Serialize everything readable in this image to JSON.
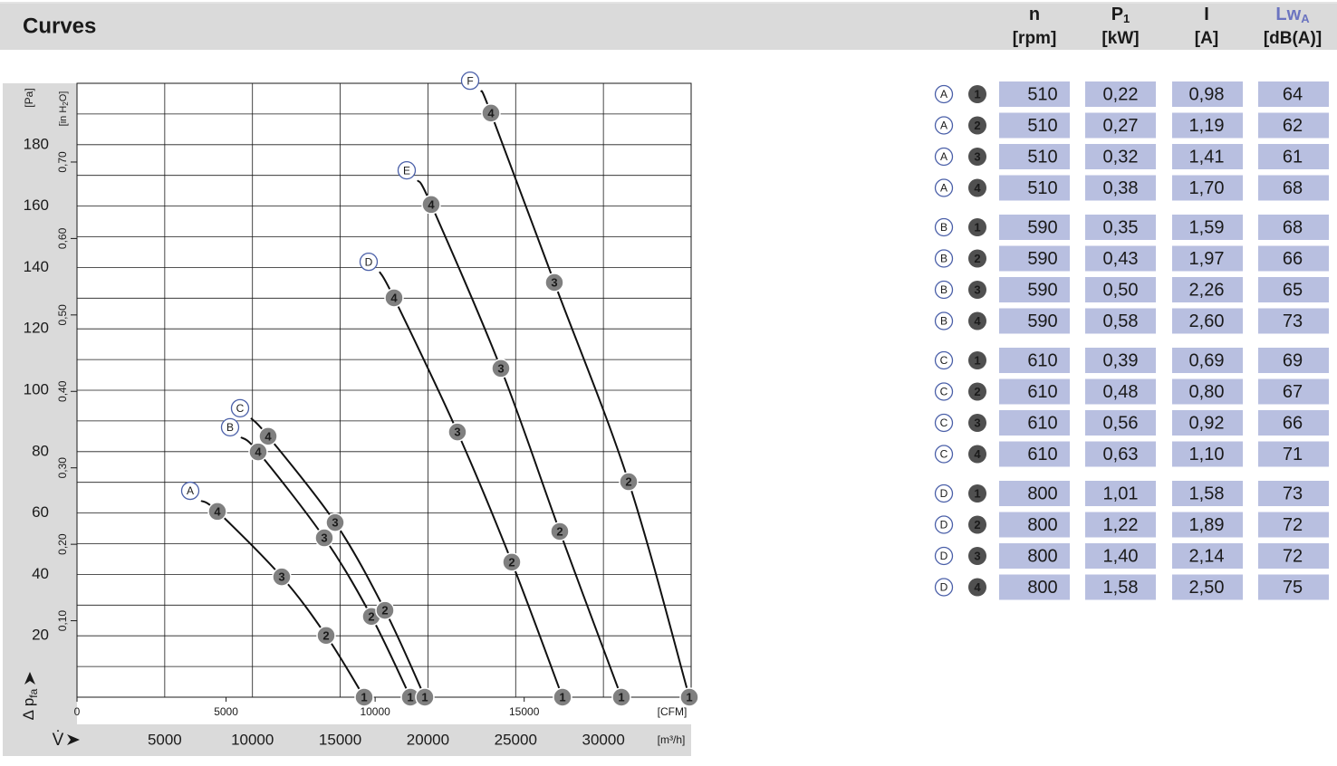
{
  "title": "Curves",
  "chart_data": {
    "type": "fan-curves",
    "xlim": [
      0,
      35000
    ],
    "xticks": [
      5000,
      10000,
      15000,
      20000,
      25000,
      30000
    ],
    "x_unit": "[m³/h]",
    "x_label": "V̇",
    "x2lim": [
      0,
      20600
    ],
    "x2ticks": [
      0,
      5000,
      10000,
      15000
    ],
    "x2_unit": "[CFM]",
    "ylim": [
      0,
      200
    ],
    "yticks": [
      20,
      40,
      60,
      80,
      100,
      120,
      140,
      160,
      180
    ],
    "yminor_ticks": [
      10,
      20,
      30,
      40,
      50,
      60,
      70,
      80,
      90,
      100,
      110,
      120,
      130,
      140,
      150,
      160,
      170,
      180,
      190
    ],
    "y_unit": "[Pa]",
    "y_label": {
      "main": "Δ p",
      "sub": "fa"
    },
    "y2lim": [
      0,
      0.803
    ],
    "y2ticks": [
      {
        "value": 0.1,
        "label": "0,10"
      },
      {
        "value": 0.2,
        "label": "0,20"
      },
      {
        "value": 0.3,
        "label": "0,30"
      },
      {
        "value": 0.4,
        "label": "0,40"
      },
      {
        "value": 0.5,
        "label": "0,50"
      },
      {
        "value": 0.6,
        "label": "0,60"
      },
      {
        "value": 0.7,
        "label": "0,70"
      }
    ],
    "y2_unit": {
      "main": "[in H",
      "sub": "2",
      "end": "O]"
    },
    "grid": true,
    "line_color": "#111111",
    "marker_color": "#808080",
    "label_color": "#4a5fa8",
    "series": [
      {
        "name": "A",
        "x": [
          7072,
          8001,
          11666,
          14196,
          16364
        ],
        "values": [
          64.0,
          60.5,
          39.2,
          20.1,
          0
        ],
        "point_labels": [
          null,
          "4",
          "3",
          "2",
          "1"
        ]
      },
      {
        "name": "B",
        "x": [
          9343,
          10324,
          14092,
          16777,
          18996
        ],
        "values": [
          84.7,
          79.9,
          51.9,
          26.3,
          0
        ],
        "point_labels": [
          null,
          "4",
          "3",
          "2",
          "1"
        ]
      },
      {
        "name": "C",
        "x": [
          9911,
          10892,
          14712,
          17551,
          19822
        ],
        "values": [
          90.9,
          85.0,
          56.9,
          28.3,
          0
        ],
        "point_labels": [
          null,
          "4",
          "3",
          "2",
          "1"
        ]
      },
      {
        "name": "D",
        "x": [
          17241,
          18067,
          21680,
          24778,
          27668
        ],
        "values": [
          138.6,
          130.1,
          86.4,
          44.0,
          0
        ],
        "point_labels": [
          null,
          "4",
          "3",
          "2",
          "1"
        ]
      },
      {
        "name": "E",
        "x": [
          19409,
          20183,
          24158,
          27513,
          31024
        ],
        "values": [
          168.4,
          160.5,
          107.1,
          54.0,
          0
        ],
        "point_labels": [
          null,
          "4",
          "3",
          "2",
          "1"
        ]
      },
      {
        "name": "F",
        "x": [
          23023,
          23590,
          27204,
          31437,
          34895
        ],
        "values": [
          197.6,
          190.3,
          135.1,
          70.2,
          0
        ],
        "point_labels": [
          null,
          "4",
          "3",
          "2",
          "1"
        ]
      }
    ]
  },
  "table": {
    "header": [
      {
        "main": "n",
        "unit": "[rpm]"
      },
      {
        "main": "P",
        "sub": "1",
        "unit": "[kW]"
      },
      {
        "main": "I",
        "unit": "[A]"
      },
      {
        "main": "Lw",
        "sub": "A",
        "unit": "[dB(A)]",
        "color": "#6b74c0"
      }
    ],
    "cell_color": "#b8bfe0",
    "rows": [
      [
        "A",
        "1",
        "510",
        "0,22",
        "0,98",
        "64"
      ],
      [
        "A",
        "2",
        "510",
        "0,27",
        "1,19",
        "62"
      ],
      [
        "A",
        "3",
        "510",
        "0,32",
        "1,41",
        "61"
      ],
      [
        "A",
        "4",
        "510",
        "0,38",
        "1,70",
        "68"
      ],
      [
        "B",
        "1",
        "590",
        "0,35",
        "1,59",
        "68"
      ],
      [
        "B",
        "2",
        "590",
        "0,43",
        "1,97",
        "66"
      ],
      [
        "B",
        "3",
        "590",
        "0,50",
        "2,26",
        "65"
      ],
      [
        "B",
        "4",
        "590",
        "0,58",
        "2,60",
        "73"
      ],
      [
        "C",
        "1",
        "610",
        "0,39",
        "0,69",
        "69"
      ],
      [
        "C",
        "2",
        "610",
        "0,48",
        "0,80",
        "67"
      ],
      [
        "C",
        "3",
        "610",
        "0,56",
        "0,92",
        "66"
      ],
      [
        "C",
        "4",
        "610",
        "0,63",
        "1,10",
        "71"
      ],
      [
        "D",
        "1",
        "800",
        "1,01",
        "1,58",
        "73"
      ],
      [
        "D",
        "2",
        "800",
        "1,22",
        "1,89",
        "72"
      ],
      [
        "D",
        "3",
        "800",
        "1,40",
        "2,14",
        "72"
      ],
      [
        "D",
        "4",
        "800",
        "1,58",
        "2,50",
        "75"
      ]
    ]
  }
}
